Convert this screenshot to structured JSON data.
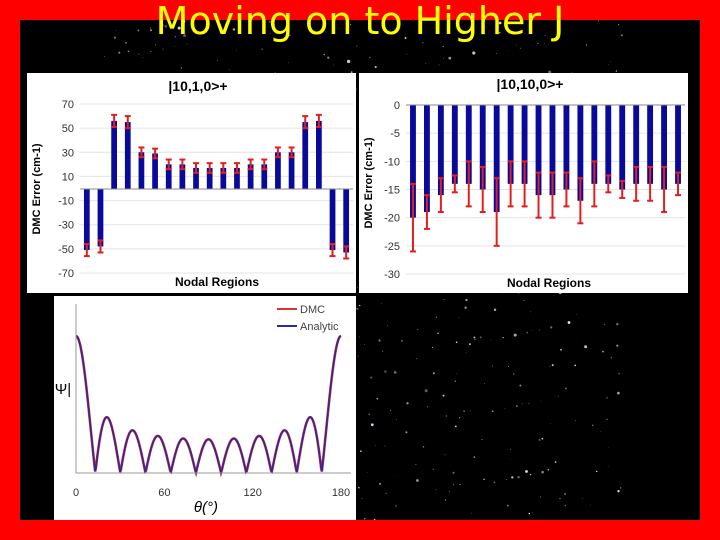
{
  "slide": {
    "title": "Moving on to Higher J",
    "colors": {
      "frame": "#ff0000",
      "background": "#000000",
      "title": "#ffff00",
      "bar": "#0a0a9a",
      "error": "#e02020"
    }
  },
  "chart_data": [
    {
      "type": "bar",
      "title": "|10,1,0>+",
      "xlabel": "Nodal Regions",
      "ylabel": "DMC Error (cm-1)",
      "ylim": [
        -70,
        70
      ],
      "yticks": [
        70,
        50,
        30,
        10,
        -10,
        -30,
        -50,
        -70
      ],
      "values": [
        -51,
        -48,
        56,
        55,
        30,
        29,
        20,
        20,
        17,
        17,
        17,
        17,
        20,
        20,
        30,
        30,
        55,
        56,
        -51,
        -53
      ],
      "errors": [
        5,
        5,
        5,
        5,
        4,
        4,
        4,
        4,
        4,
        4,
        4,
        4,
        4,
        4,
        4,
        4,
        5,
        5,
        5,
        5
      ]
    },
    {
      "type": "bar",
      "title": "|10,10,0>+",
      "xlabel": "Nodal Regions",
      "ylabel": "DMC Error (cm-1)",
      "ylim": [
        -30,
        0
      ],
      "yticks": [
        0,
        -5,
        -10,
        -15,
        -20,
        -25,
        -30
      ],
      "values": [
        -20,
        -19,
        -16,
        -14,
        -14,
        -15,
        -19,
        -14,
        -14,
        -16,
        -16,
        -15,
        -17,
        -14,
        -14,
        -15,
        -14,
        -14,
        -15,
        -14
      ],
      "errors": [
        6,
        3,
        3,
        1.5,
        4,
        4,
        6,
        4,
        4,
        4,
        4,
        3,
        4,
        4,
        1.5,
        1.5,
        3,
        3,
        4,
        2
      ]
    },
    {
      "type": "line",
      "xlabel": "θ(°)",
      "ylabel": "|Ψ|",
      "xlim": [
        0,
        180
      ],
      "xticks": [
        0,
        60,
        120,
        180
      ],
      "grid": false,
      "legend": "top-right",
      "series": [
        {
          "name": "DMC",
          "color": "#e03030",
          "function": "|P_10^0(cos θ)|",
          "x": [
            0,
            180
          ]
        },
        {
          "name": "Analytic",
          "color": "#2a2a9a",
          "function": "|P_10^0(cos θ)|",
          "x": [
            0,
            180
          ]
        }
      ]
    }
  ]
}
